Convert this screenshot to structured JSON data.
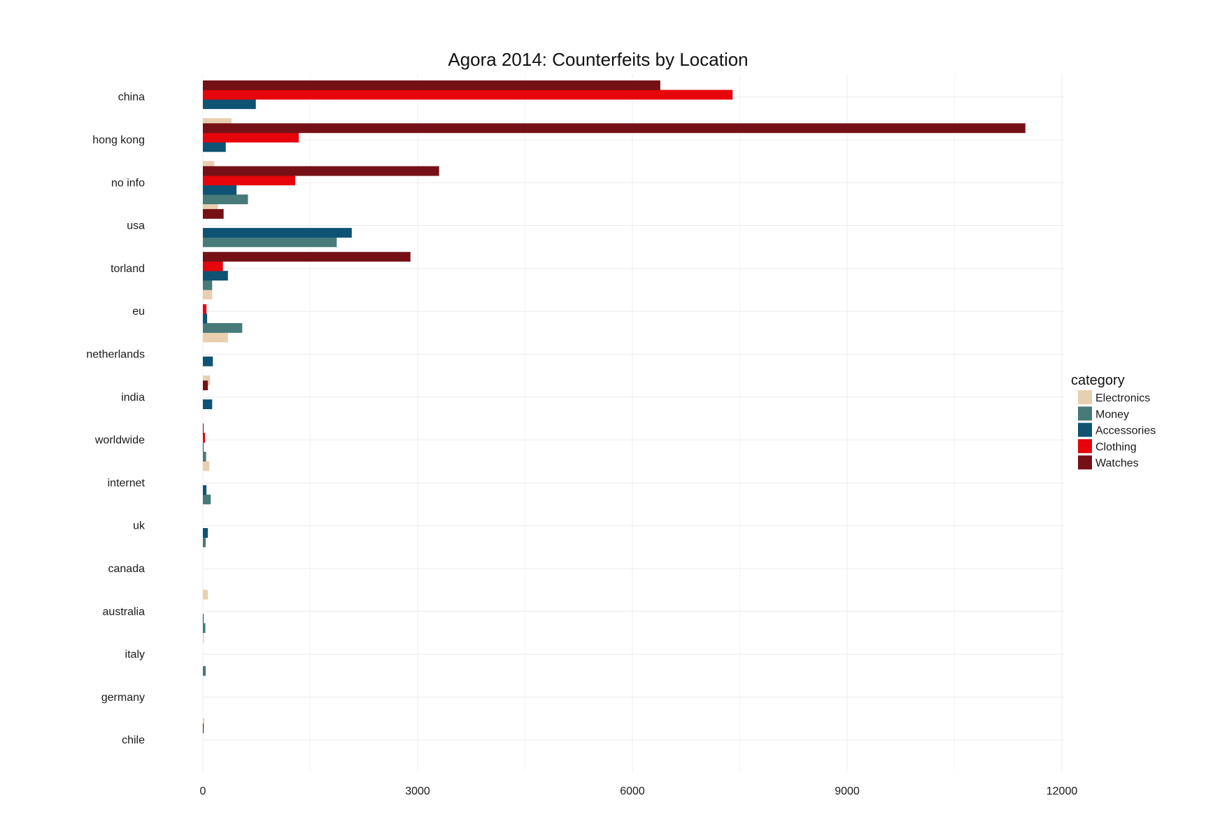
{
  "chart_data": {
    "type": "bar",
    "orientation": "horizontal",
    "title": "Agora 2014: Counterfeits by Location",
    "xlabel": "",
    "ylabel": "",
    "xlim": [
      0,
      12000
    ],
    "xticks": [
      0,
      3000,
      6000,
      9000,
      12000
    ],
    "xtick_labels": [
      "0",
      "3000",
      "6000",
      "9000",
      "12000"
    ],
    "grid": true,
    "legend": {
      "title": "category",
      "position": "right"
    },
    "categories": [
      "china",
      "hong kong",
      "no info",
      "usa",
      "torland",
      "eu",
      "netherlands",
      "india",
      "worldwide",
      "internet",
      "uk",
      "canada",
      "australia",
      "italy",
      "germany",
      "chile"
    ],
    "series": [
      {
        "name": "Electronics",
        "color": "#e8cfb0",
        "values": [
          400,
          160,
          210,
          0,
          130,
          350,
          100,
          0,
          90,
          0,
          0,
          70,
          15,
          0,
          20,
          0
        ]
      },
      {
        "name": "Money",
        "color": "#477a79",
        "values": [
          0,
          0,
          630,
          1870,
          130,
          550,
          0,
          0,
          45,
          110,
          40,
          0,
          35,
          40,
          0,
          0
        ]
      },
      {
        "name": "Accessories",
        "color": "#0f5374",
        "values": [
          740,
          320,
          470,
          2080,
          350,
          60,
          140,
          130,
          5,
          50,
          70,
          0,
          10,
          0,
          0,
          0
        ]
      },
      {
        "name": "Clothing",
        "color": "#e5050b",
        "values": [
          7400,
          1340,
          1290,
          0,
          280,
          50,
          0,
          0,
          30,
          0,
          0,
          0,
          0,
          0,
          0,
          0
        ]
      },
      {
        "name": "Watches",
        "color": "#751116",
        "values": [
          6390,
          11490,
          3300,
          290,
          2900,
          0,
          0,
          70,
          10,
          0,
          0,
          0,
          0,
          0,
          0,
          10
        ]
      }
    ]
  }
}
